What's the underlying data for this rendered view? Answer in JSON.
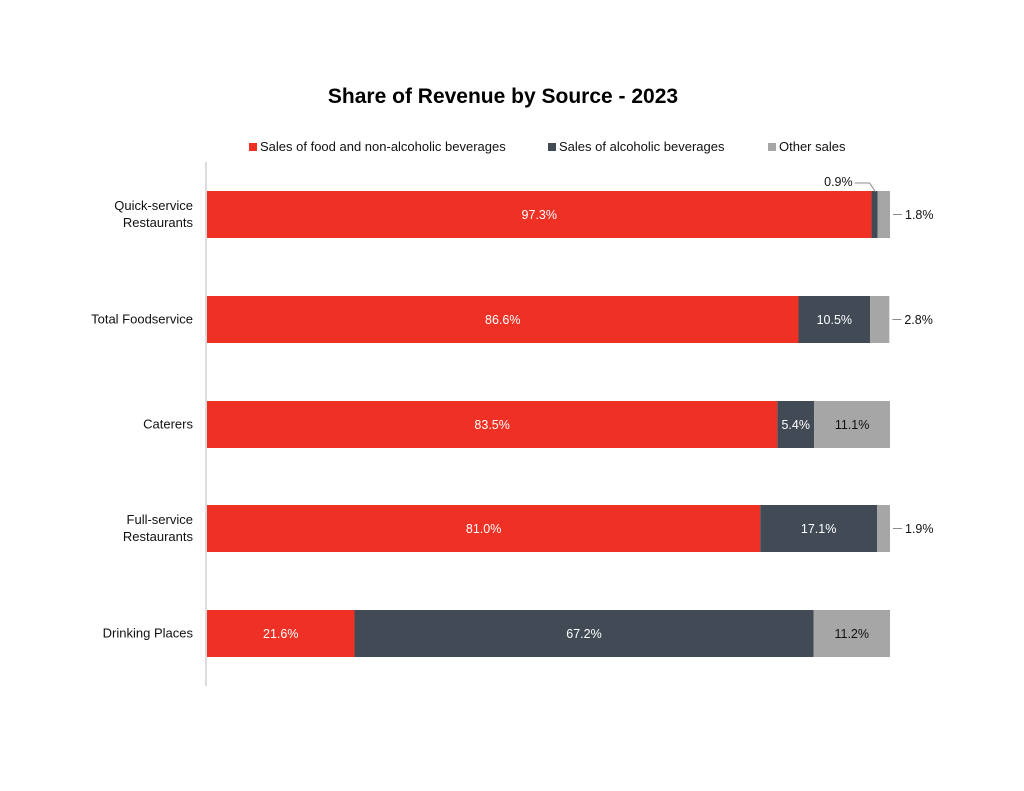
{
  "chart_data": {
    "type": "bar",
    "orientation": "horizontal",
    "stacked": true,
    "title": "Share of Revenue by Source - 2023",
    "legend_position": "top",
    "categories": [
      "Quick-service Restaurants",
      "Total Foodservice",
      "Caterers",
      "Full-service Restaurants",
      "Drinking Places"
    ],
    "category_lines": [
      [
        "Quick-service",
        "Restaurants"
      ],
      [
        "Total Foodservice"
      ],
      [
        "Caterers"
      ],
      [
        "Full-service",
        "Restaurants"
      ],
      [
        "Drinking Places"
      ]
    ],
    "series": [
      {
        "name": "Sales of food and non-alcoholic beverages",
        "color": "#ee3124",
        "label_color": "#ffffff",
        "values": [
          97.3,
          86.6,
          83.5,
          81.0,
          21.6
        ],
        "labels": [
          "97.3%",
          "86.6%",
          "83.5%",
          "81.0%",
          "21.6%"
        ]
      },
      {
        "name": "Sales of alcoholic beverages",
        "color": "#414a55",
        "label_color": "#ffffff",
        "values": [
          0.9,
          10.5,
          5.4,
          17.1,
          67.2
        ],
        "labels": [
          "0.9%",
          "10.5%",
          "5.4%",
          "17.1%",
          "67.2%"
        ]
      },
      {
        "name": "Other sales",
        "color": "#a6a6a6",
        "label_color": "#111111",
        "values": [
          1.8,
          2.8,
          11.1,
          1.9,
          11.2
        ],
        "labels": [
          "1.8%",
          "2.8%",
          "11.1%",
          "1.9%",
          "11.2%"
        ]
      }
    ],
    "xlim": [
      0,
      100
    ],
    "grid": false
  }
}
